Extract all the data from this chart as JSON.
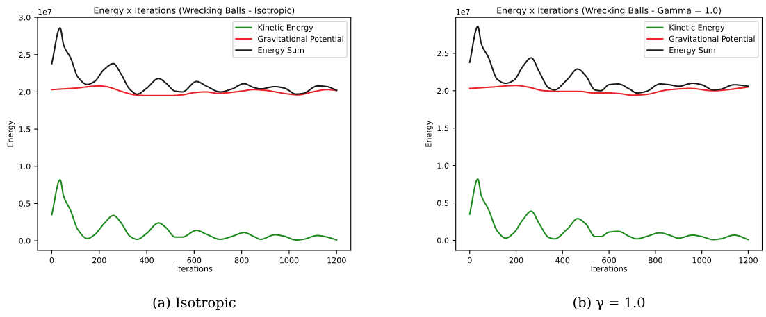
{
  "chart_data": [
    {
      "type": "line",
      "title": "Energy x Iterations (Wrecking Balls - Isotropic)",
      "xlabel": "Iterations",
      "ylabel": "Energy",
      "annotations": [
        "1e7",
        "(a) Isotropic"
      ],
      "xlim": [
        -60,
        1260
      ],
      "xticks": [
        0,
        200,
        400,
        600,
        800,
        1000,
        1200
      ],
      "ylim": [
        -0.13,
        3.0
      ],
      "yticks": [
        {
          "value": 0,
          "label": "0.0"
        },
        0.5,
        {
          "value": 1,
          "label": "1.0"
        },
        1.5,
        {
          "value": 2,
          "label": "2.0"
        },
        2.5,
        {
          "value": 3,
          "label": "3.0"
        }
      ],
      "legend": "top right",
      "grid": false,
      "series": [
        {
          "name": "Kinetic Energy",
          "color": "#1f8a1f",
          "x": [
            0,
            35,
            50,
            80,
            110,
            150,
            180,
            220,
            260,
            290,
            330,
            360,
            400,
            450,
            480,
            520,
            550,
            610,
            650,
            710,
            760,
            810,
            850,
            880,
            940,
            980,
            1030,
            1060,
            1120,
            1160,
            1200
          ],
          "values": [
            0.35,
            0.82,
            0.6,
            0.4,
            0.15,
            0.03,
            0.08,
            0.23,
            0.34,
            0.25,
            0.06,
            0.02,
            0.1,
            0.24,
            0.18,
            0.05,
            0.05,
            0.14,
            0.09,
            0.02,
            0.06,
            0.11,
            0.06,
            0.02,
            0.08,
            0.06,
            0.01,
            0.02,
            0.07,
            0.05,
            0.01
          ]
        },
        {
          "name": "Gravitational Potential",
          "color": "#e8262b",
          "x": [
            0,
            100,
            200,
            230,
            300,
            350,
            400,
            500,
            550,
            600,
            650,
            700,
            800,
            850,
            900,
            1000,
            1040,
            1100,
            1160,
            1200
          ],
          "values": [
            2.03,
            2.05,
            2.08,
            2.07,
            2.0,
            1.96,
            1.95,
            1.95,
            1.96,
            1.99,
            2.0,
            1.98,
            2.01,
            2.03,
            2.02,
            1.97,
            1.96,
            2.0,
            2.03,
            2.02
          ]
        },
        {
          "name": "Energy Sum",
          "color": "#1a1a1a",
          "x": [
            0,
            35,
            50,
            80,
            110,
            150,
            180,
            220,
            260,
            290,
            330,
            360,
            400,
            450,
            480,
            520,
            550,
            610,
            650,
            710,
            760,
            810,
            850,
            880,
            940,
            980,
            1030,
            1060,
            1120,
            1160,
            1200
          ],
          "values": [
            2.38,
            2.86,
            2.63,
            2.45,
            2.2,
            2.1,
            2.14,
            2.3,
            2.38,
            2.25,
            2.03,
            1.97,
            2.05,
            2.18,
            2.12,
            2.01,
            2.0,
            2.14,
            2.08,
            2.0,
            2.04,
            2.11,
            2.06,
            2.04,
            2.07,
            2.05,
            1.97,
            1.98,
            2.08,
            2.07,
            2.02
          ]
        }
      ]
    },
    {
      "type": "line",
      "title": "Energy x Iterations (Wrecking Balls - Gamma = 1.0)",
      "xlabel": "Iterations",
      "ylabel": "Energy",
      "annotations": [
        "1e7",
        "(b) γ = 1.0"
      ],
      "xlim": [
        -60,
        1260
      ],
      "xticks": [
        0,
        200,
        400,
        600,
        800,
        1000,
        1200
      ],
      "ylim": [
        -0.135,
        2.98
      ],
      "yticks": [
        {
          "value": 0,
          "label": "0.0"
        },
        0.5,
        {
          "value": 1,
          "label": "1.0"
        },
        1.5,
        {
          "value": 2,
          "label": "2.0"
        },
        2.5
      ],
      "legend": "top right",
      "grid": false,
      "series": [
        {
          "name": "Kinetic Energy",
          "color": "#1f8a1f",
          "x": [
            0,
            35,
            50,
            80,
            120,
            155,
            190,
            230,
            265,
            300,
            340,
            365,
            420,
            465,
            500,
            540,
            565,
            600,
            640,
            690,
            720,
            760,
            820,
            860,
            900,
            960,
            1000,
            1050,
            1080,
            1140,
            1200
          ],
          "values": [
            0.35,
            0.82,
            0.6,
            0.42,
            0.12,
            0.03,
            0.1,
            0.28,
            0.39,
            0.22,
            0.04,
            0.02,
            0.15,
            0.29,
            0.22,
            0.05,
            0.05,
            0.11,
            0.12,
            0.05,
            0.02,
            0.05,
            0.1,
            0.07,
            0.03,
            0.07,
            0.05,
            0.01,
            0.02,
            0.07,
            0.01
          ]
        },
        {
          "name": "Gravitational Potential",
          "color": "#e8262b",
          "x": [
            0,
            100,
            200,
            250,
            320,
            400,
            480,
            530,
            600,
            650,
            700,
            760,
            850,
            950,
            1050,
            1100,
            1200
          ],
          "values": [
            2.03,
            2.05,
            2.07,
            2.05,
            2.0,
            1.99,
            1.99,
            1.97,
            1.97,
            1.96,
            1.94,
            1.95,
            2.01,
            2.03,
            2.0,
            2.01,
            2.05
          ]
        },
        {
          "name": "Energy Sum",
          "color": "#1a1a1a",
          "x": [
            0,
            35,
            50,
            80,
            120,
            155,
            190,
            230,
            265,
            300,
            340,
            365,
            420,
            465,
            500,
            540,
            565,
            600,
            640,
            690,
            720,
            760,
            820,
            860,
            900,
            960,
            1000,
            1050,
            1080,
            1140,
            1200
          ],
          "values": [
            2.38,
            2.86,
            2.63,
            2.45,
            2.15,
            2.1,
            2.14,
            2.33,
            2.44,
            2.25,
            2.04,
            2.01,
            2.15,
            2.29,
            2.2,
            2.01,
            2.0,
            2.08,
            2.09,
            2.02,
            1.97,
            1.99,
            2.09,
            2.08,
            2.06,
            2.1,
            2.08,
            2.01,
            2.02,
            2.08,
            2.06
          ]
        }
      ]
    }
  ]
}
